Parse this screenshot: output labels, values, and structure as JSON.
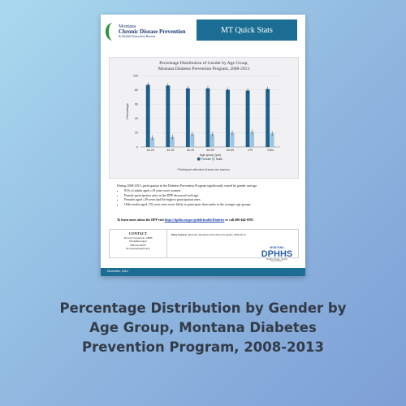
{
  "document": {
    "logo": {
      "line1": "Montana",
      "line2": "Chronic Disease Prevention",
      "line3": "& Health Promotion Bureau"
    },
    "header_title": "MT Quick Stats",
    "chart_title_line1": "Percentage Distribution of Gender by Age Group,",
    "chart_title_line2": "Montana Diabetes Prevention Program, 2008-2013",
    "footnote": "*Participant attended at least one session.",
    "summary": "During 2008-2013, participation in the Diabetes Prevention Program significantly varied by gender and age.",
    "bullets": [
      "81% of adults aged ≥18 years were women.",
      "Female participation rates in the DPP decreased with age.",
      "Females aged ≤39 years had the highest participation rates.",
      "Older males aged ≥70 years were more likely to participate than males in the younger age groups."
    ],
    "learn_prefix": "To learn more about the DPP visit ",
    "learn_link": "https://dphhs.mt.gov/publichealth/Diabetes",
    "learn_suffix": " or call 406-444-0593",
    "contact": {
      "title": "CONTACT",
      "name": "Dorota Carpenedo, MPH",
      "role": "Epidemiologist",
      "phone": "406-444-6933",
      "email": "Dcarpenedo@mt.gov"
    },
    "data_source_label": "Data Source:",
    "data_source_text": " Montana Diabetes Prevention Program, 2008-2013",
    "dphhs": {
      "state": "MONTANA",
      "name": "DPHHS",
      "tagline": "Healthy People. Healthy Communities."
    },
    "footer_date": "December, 2014"
  },
  "chart_data": {
    "type": "bar",
    "categories": [
      "18-29",
      "30-39",
      "40-49",
      "50-59",
      "60-69",
      "≥70",
      "Total"
    ],
    "series": [
      {
        "name": "Female",
        "values": [
          87,
          86,
          82,
          82,
          80,
          79,
          81
        ],
        "color": "#1f5f8b"
      },
      {
        "name": "Male",
        "values": [
          13,
          14,
          18,
          18,
          20,
          21,
          19
        ],
        "color": "#9ec5e0"
      }
    ],
    "ylim": [
      0,
      100
    ],
    "yticks": [
      0,
      20,
      40,
      60,
      80,
      100
    ],
    "ylabel": "Percentage",
    "xlabel": "Age group (yrs)",
    "legend_position": "bottom"
  },
  "caption": "Percentage Distribution by Gender by Age Group, Montana Diabetes Prevention Program, 2008-2013"
}
